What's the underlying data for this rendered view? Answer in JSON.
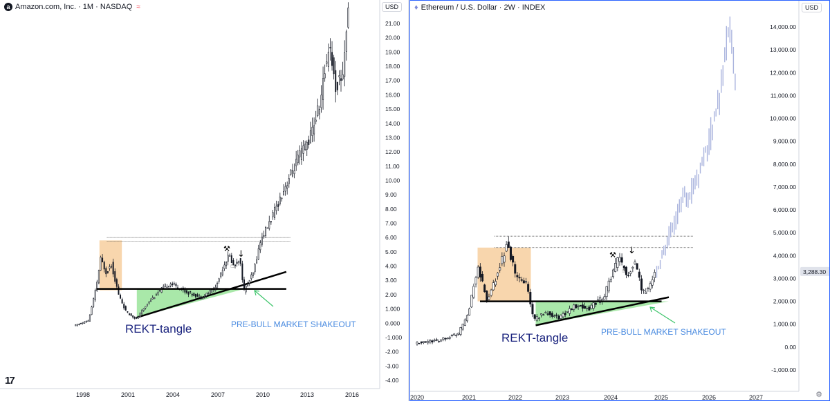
{
  "left": {
    "title": "Amazon.com, Inc. · 1M · NASDAQ",
    "currency": "USD",
    "watermark": "17",
    "labels": {
      "pattern": "REKT-tangle",
      "shakeout": "PRE-BULL MARKET SHAKEOUT"
    },
    "chart_data": {
      "type": "candlestick",
      "ylim": [
        -4.0,
        21.0
      ],
      "y_ticks": [
        "21.00",
        "20.00",
        "19.00",
        "18.00",
        "17.00",
        "16.00",
        "15.00",
        "14.00",
        "13.00",
        "12.00",
        "11.00",
        "10.00",
        "9.00",
        "8.00",
        "7.00",
        "6.00",
        "5.00",
        "4.00",
        "3.00",
        "2.00",
        "1.000",
        "0.000",
        "-1.000",
        "-2.00",
        "-3.00",
        "-4.00"
      ],
      "x_ticks": [
        "1998",
        "2001",
        "2004",
        "2007",
        "2010",
        "2013",
        "2016"
      ],
      "approx_price_path": [
        [
          1997.5,
          -0.2
        ],
        [
          1998.5,
          0.2
        ],
        [
          1999.0,
          2.5
        ],
        [
          1999.3,
          4.5
        ],
        [
          1999.7,
          3.5
        ],
        [
          2000.0,
          4.2
        ],
        [
          2000.5,
          2.0
        ],
        [
          2001.0,
          0.8
        ],
        [
          2001.7,
          0.3
        ],
        [
          2002.5,
          1.5
        ],
        [
          2003.5,
          2.5
        ],
        [
          2004.0,
          2.8
        ],
        [
          2005.0,
          2.2
        ],
        [
          2006.0,
          1.8
        ],
        [
          2007.0,
          2.5
        ],
        [
          2007.5,
          4.0
        ],
        [
          2007.9,
          4.8
        ],
        [
          2008.2,
          4.0
        ],
        [
          2008.6,
          4.5
        ],
        [
          2008.9,
          2.3
        ],
        [
          2009.5,
          3.5
        ],
        [
          2010.0,
          5.8
        ],
        [
          2010.8,
          7.5
        ],
        [
          2011.6,
          9.5
        ],
        [
          2012.5,
          11.5
        ],
        [
          2013.3,
          13.0
        ],
        [
          2014.0,
          15.5
        ],
        [
          2014.6,
          19.8
        ],
        [
          2015.0,
          16.5
        ],
        [
          2015.5,
          17.5
        ],
        [
          2015.8,
          21.5
        ]
      ],
      "annotations": {
        "hline_level": 2.4,
        "dotted_top_levels": [
          6.0,
          5.75
        ],
        "shaded_zone": {
          "x": [
            1999.1,
            2000.6
          ],
          "y": [
            2.3,
            5.8
          ],
          "color": "#f5c48a"
        },
        "triangle": [
          [
            2001.6,
            0.4
          ],
          [
            2008.8,
            2.4
          ],
          [
            2001.6,
            2.4
          ]
        ],
        "triangle_color": "#8ce08c"
      }
    }
  },
  "right": {
    "title": "Ethereum / U.S. Dollar · 2W · INDEX",
    "currency": "USD",
    "price_badge": "3,288.30",
    "labels": {
      "pattern": "REKT-tangle",
      "shakeout": "PRE-BULL MARKET SHAKEOUT"
    },
    "chart_data": {
      "type": "candlestick",
      "ylim": [
        -1000,
        14000
      ],
      "y_ticks": [
        "14,000.00",
        "13,000.00",
        "12,000.00",
        "11,000.00",
        "10,000.00",
        "9,000.00",
        "8,000.00",
        "7,000.00",
        "6,000.00",
        "5,000.00",
        "4,000.00",
        "3,000.00",
        "2,000.00",
        "1,000.00",
        "0.00",
        "-1,000.00"
      ],
      "x_ticks": [
        "2020",
        "2021",
        "2022",
        "2023",
        "2024",
        "2025",
        "2026",
        "2027"
      ],
      "approx_price_path": [
        [
          2020.0,
          150
        ],
        [
          2020.5,
          300
        ],
        [
          2020.9,
          600
        ],
        [
          2021.1,
          1500
        ],
        [
          2021.3,
          3500
        ],
        [
          2021.5,
          2000
        ],
        [
          2021.7,
          3200
        ],
        [
          2021.9,
          4500
        ],
        [
          2022.1,
          3000
        ],
        [
          2022.3,
          2800
        ],
        [
          2022.45,
          1200
        ],
        [
          2022.7,
          1500
        ],
        [
          2023.0,
          1300
        ],
        [
          2023.3,
          1800
        ],
        [
          2023.6,
          1700
        ],
        [
          2023.9,
          2200
        ],
        [
          2024.2,
          3900
        ],
        [
          2024.4,
          3100
        ],
        [
          2024.55,
          3800
        ],
        [
          2024.7,
          2400
        ],
        [
          2024.85,
          2600
        ],
        [
          2024.95,
          3300
        ]
      ],
      "projection_path": [
        [
          2024.95,
          3300
        ],
        [
          2025.2,
          4800
        ],
        [
          2025.5,
          6500
        ],
        [
          2025.75,
          7000
        ],
        [
          2026.0,
          8800
        ],
        [
          2026.25,
          11000
        ],
        [
          2026.45,
          14200
        ],
        [
          2026.55,
          12000
        ],
        [
          2026.6,
          10500
        ]
      ],
      "projection_color": "#aab4de",
      "annotations": {
        "hline_level": 2000,
        "dotted_top_levels": [
          4850,
          4350
        ],
        "shaded_zone": {
          "x": [
            2021.25,
            2022.35
          ],
          "y": [
            2000,
            4350
          ],
          "color": "#f5c48a"
        },
        "triangle": [
          [
            2022.45,
            950
          ],
          [
            2025.2,
            2000
          ],
          [
            2022.45,
            2000
          ]
        ],
        "triangle_color": "#8ce08c"
      }
    }
  }
}
